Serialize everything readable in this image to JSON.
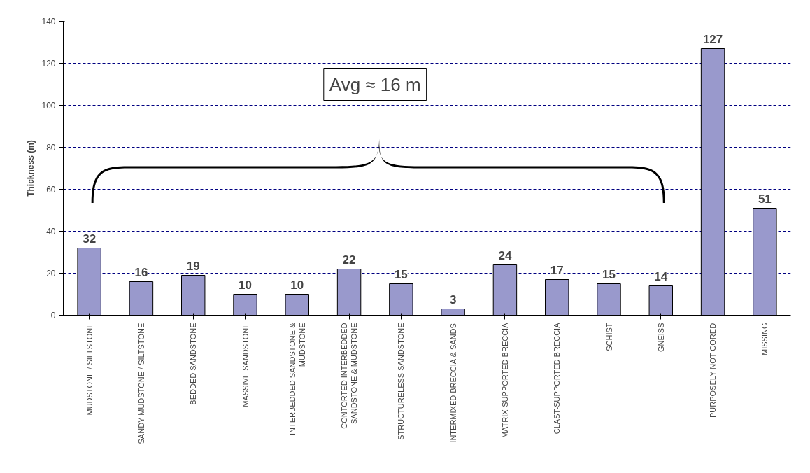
{
  "chart_data": {
    "type": "bar",
    "ylabel": "Thickness (m)",
    "categories": [
      "MUDSTONE / SILTSTONE",
      "SANDY MUDSTONE / SILTSTONE",
      "BEDDED SANDSTONE",
      "MASSIVE SANDSTONE",
      "INTERBEDDED SANDSTONE & MUDSTONE",
      "CONTORTED INTERBEDDED SANDSTONE & MUDSTONE",
      "STRUCTURELESS SANDSTONE",
      "INTERMIXED BRECCIA & SANDS",
      "MATRIX-SUPPORTED BRECCIA",
      "CLAST-SUPPORTED BRECCIA",
      "SCHIST",
      "GNEISS",
      "PURPOSELY NOT CORED",
      "MISSING"
    ],
    "values": [
      32,
      16,
      19,
      10,
      10,
      22,
      15,
      3,
      24,
      17,
      15,
      14,
      127,
      51
    ],
    "color": "#9999cc",
    "data_labels": true,
    "ylim": [
      0,
      140
    ],
    "yticks": [
      0,
      20,
      40,
      60,
      80,
      100,
      120,
      140
    ],
    "grid": "y",
    "annotations": [
      "Avg ≈ 16 m"
    ]
  }
}
